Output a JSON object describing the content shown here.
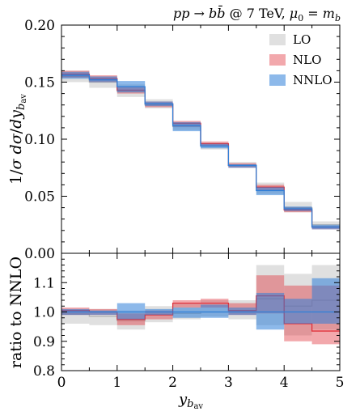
{
  "chart_data": {
    "type": "step-band",
    "title": "pp → bb̄ @ 7 TeV, μ0 = mb",
    "xlabel": "y_bav",
    "xlim": [
      0,
      5
    ],
    "x_edges": [
      0,
      0.5,
      1,
      1.5,
      2,
      2.5,
      3,
      3.5,
      4,
      4.5,
      5
    ],
    "xticks": [
      "0",
      "1",
      "2",
      "3",
      "4",
      "5"
    ],
    "legend": {
      "placement": "top-right",
      "entries": [
        "LO",
        "NLO",
        "NNLO"
      ]
    },
    "series_colors": {
      "LO": "#b4b4b4",
      "NLO": "#e0303a",
      "NNLO": "#2f7fd8"
    },
    "panels": [
      {
        "name": "distribution",
        "ylabel": "1/σ dσ/dy_bav",
        "ylim": [
          0.0,
          0.2
        ],
        "yticks": [
          "0.00",
          "0.05",
          "0.10",
          "0.15",
          "0.20"
        ],
        "series": [
          {
            "name": "LO",
            "central": [
              0.155,
              0.15,
              0.142,
              0.13,
              0.111,
              0.094,
              0.077,
              0.058,
              0.04,
              0.025
            ],
            "low": [
              0.15,
              0.145,
              0.137,
              0.127,
              0.108,
              0.091,
              0.075,
              0.052,
              0.036,
              0.022
            ],
            "high": [
              0.16,
              0.155,
              0.148,
              0.135,
              0.114,
              0.097,
              0.08,
              0.062,
              0.045,
              0.028
            ]
          },
          {
            "name": "NLO",
            "central": [
              0.157,
              0.153,
              0.143,
              0.131,
              0.114,
              0.096,
              0.077,
              0.058,
              0.038,
              0.023
            ],
            "low": [
              0.154,
              0.15,
              0.14,
              0.128,
              0.111,
              0.094,
              0.075,
              0.055,
              0.036,
              0.021
            ],
            "high": [
              0.16,
              0.156,
              0.146,
              0.133,
              0.116,
              0.098,
              0.079,
              0.06,
              0.04,
              0.024
            ]
          },
          {
            "name": "NNLO",
            "central": [
              0.156,
              0.152,
              0.146,
              0.131,
              0.112,
              0.094,
              0.077,
              0.055,
              0.039,
              0.023
            ],
            "low": [
              0.153,
              0.15,
              0.141,
              0.129,
              0.107,
              0.092,
              0.075,
              0.051,
              0.037,
              0.021
            ],
            "high": [
              0.159,
              0.155,
              0.151,
              0.133,
              0.115,
              0.096,
              0.078,
              0.058,
              0.041,
              0.025
            ]
          }
        ]
      },
      {
        "name": "ratio",
        "ylabel": "ratio to NNLO",
        "ylim": [
          0.8,
          1.2
        ],
        "yticks": [
          "0.8",
          "0.9",
          "1.0",
          "1.1"
        ],
        "series": [
          {
            "name": "LO",
            "central": [
              0.993,
              0.985,
              0.97,
              0.99,
              0.995,
              1.0,
              1.005,
              1.045,
              1.02,
              1.04
            ],
            "low": [
              0.96,
              0.955,
              0.94,
              0.965,
              0.975,
              0.985,
              0.975,
              0.955,
              0.92,
              0.94
            ],
            "high": [
              1.01,
              1.01,
              1.005,
              1.02,
              1.03,
              1.04,
              1.04,
              1.16,
              1.13,
              1.16
            ]
          },
          {
            "name": "NLO",
            "central": [
              1.005,
              1.0,
              0.975,
              0.99,
              1.03,
              1.03,
              1.005,
              1.055,
              0.96,
              0.935
            ],
            "low": [
              0.99,
              0.99,
              0.955,
              0.975,
              1.015,
              1.015,
              0.99,
              0.995,
              0.9,
              0.89
            ],
            "high": [
              1.015,
              1.01,
              0.995,
              1.005,
              1.04,
              1.045,
              1.03,
              1.125,
              1.09,
              1.09
            ]
          },
          {
            "name": "NNLO",
            "central": [
              1.0,
              1.0,
              1.0,
              1.0,
              1.0,
              1.0,
              1.0,
              1.0,
              1.0,
              1.0
            ],
            "low": [
              0.99,
              0.99,
              0.975,
              0.99,
              0.98,
              0.98,
              0.99,
              0.94,
              0.96,
              0.96
            ],
            "high": [
              1.01,
              1.005,
              1.03,
              1.01,
              1.015,
              1.025,
              1.015,
              1.065,
              1.045,
              1.115
            ]
          }
        ]
      }
    ]
  }
}
